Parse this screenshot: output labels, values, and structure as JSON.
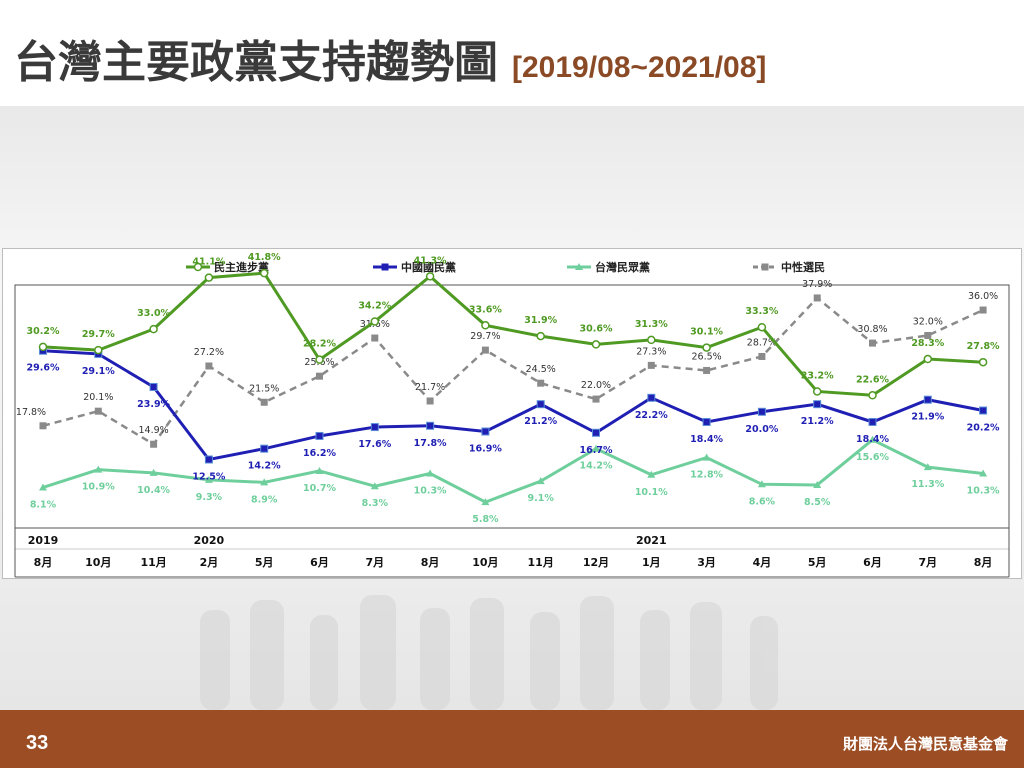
{
  "slide": {
    "title": "台灣主要政黨支持趨勢圖",
    "date_range": "[2019/08~2021/08]",
    "page_number": "33",
    "organization": "財團法人台灣民意基金會"
  },
  "chart_data": {
    "type": "line",
    "title": "",
    "xlabel": "",
    "ylabel": "",
    "ylim": [
      0,
      50
    ],
    "grid": false,
    "legend_position": "top",
    "categories": [
      "8月",
      "10月",
      "11月",
      "2月",
      "5月",
      "6月",
      "7月",
      "8月",
      "10月",
      "11月",
      "12月",
      "1月",
      "3月",
      "4月",
      "5月",
      "6月",
      "7月",
      "8月"
    ],
    "year_labels": [
      {
        "index": 0,
        "label": "2019"
      },
      {
        "index": 3,
        "label": "2020"
      },
      {
        "index": 11,
        "label": "2021"
      }
    ],
    "series": [
      {
        "name": "民主進步黨",
        "color": "#4f9a22",
        "marker": "circle",
        "dashed": false,
        "values": [
          30.2,
          29.7,
          33.0,
          41.1,
          41.8,
          28.2,
          34.2,
          41.3,
          33.6,
          31.9,
          30.6,
          31.3,
          30.1,
          33.3,
          23.2,
          22.6,
          28.3,
          27.8
        ]
      },
      {
        "name": "中國國民黨",
        "color": "#1f1fb4",
        "marker": "square",
        "dashed": false,
        "values": [
          29.6,
          29.1,
          23.9,
          12.5,
          14.2,
          16.2,
          17.6,
          17.8,
          16.9,
          21.2,
          16.7,
          22.2,
          18.4,
          20.0,
          21.2,
          18.4,
          21.9,
          20.2
        ]
      },
      {
        "name": "台灣民眾黨",
        "color": "#6fcf9c",
        "marker": "triangle",
        "dashed": false,
        "values": [
          8.1,
          10.9,
          10.4,
          9.3,
          8.9,
          10.7,
          8.3,
          10.3,
          5.8,
          9.1,
          14.2,
          10.1,
          12.8,
          8.6,
          8.5,
          15.6,
          11.3,
          10.3
        ]
      },
      {
        "name": "中性選民",
        "color": "#8a8a8a",
        "marker": "square",
        "dashed": true,
        "values": [
          17.8,
          20.1,
          14.9,
          27.2,
          21.5,
          25.6,
          31.6,
          21.7,
          29.7,
          24.5,
          22.0,
          27.3,
          26.5,
          28.7,
          37.9,
          30.8,
          32.0,
          36.0
        ]
      }
    ]
  }
}
